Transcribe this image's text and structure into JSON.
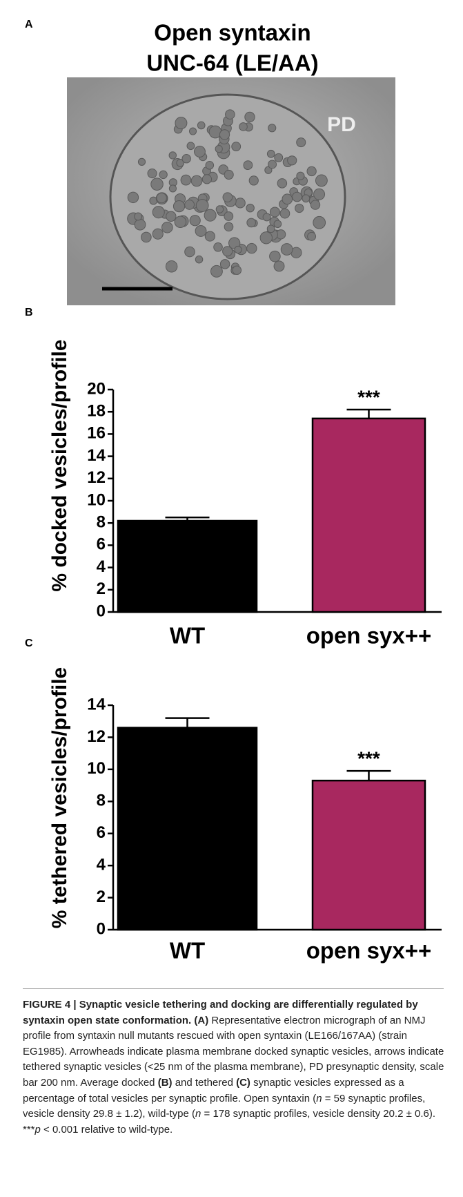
{
  "panels": {
    "a": "A",
    "b": "B",
    "c": "C"
  },
  "micrograph": {
    "title": [
      "Open syntaxin",
      "UNC-64 (LE/AA)"
    ],
    "label": "PD"
  },
  "chart_data": [
    {
      "type": "bar",
      "ylabel": "% docked vesicles/profile",
      "categories": [
        "WT",
        "open syx++"
      ],
      "values": [
        8.2,
        17.4
      ],
      "errors": [
        0.3,
        0.8
      ],
      "colors": [
        "#000000",
        "#a8285f"
      ],
      "annotations": [
        null,
        "***"
      ],
      "ylim": [
        0,
        20
      ],
      "yticks": [
        0,
        2,
        4,
        6,
        8,
        10,
        12,
        14,
        16,
        18,
        20
      ]
    },
    {
      "type": "bar",
      "ylabel": "% tethered vesicles/profile",
      "categories": [
        "WT",
        "open syx++"
      ],
      "values": [
        12.6,
        9.3
      ],
      "errors": [
        0.6,
        0.6
      ],
      "colors": [
        "#000000",
        "#a8285f"
      ],
      "annotations": [
        null,
        "***"
      ],
      "ylim": [
        0,
        14
      ],
      "yticks": [
        0,
        2,
        4,
        6,
        8,
        10,
        12,
        14
      ]
    }
  ],
  "caption": [
    {
      "text": "FIGURE 4 | Synaptic vesicle tethering and docking are differentially regulated by syntaxin open state conformation. (A)",
      "style": "bold"
    },
    {
      "text": " Representative electron micrograph of an NMJ profile from syntaxin null mutants rescued with open syntaxin (LE166/167AA) (strain EG1985). Arrowheads indicate plasma membrane docked synaptic vesicles, arrows indicate tethered synaptic vesicles (<25 nm of the plasma membrane), PD presynaptic density, scale bar 200 nm. Average docked ",
      "style": "normal"
    },
    {
      "text": "(B)",
      "style": "bold"
    },
    {
      "text": " and tethered ",
      "style": "normal"
    },
    {
      "text": "(C)",
      "style": "bold"
    },
    {
      "text": " synaptic vesicles expressed as a percentage of total vesicles per synaptic profile. Open syntaxin (",
      "style": "normal"
    },
    {
      "text": "n",
      "style": "italic"
    },
    {
      "text": " = 59 synaptic profiles, vesicle density 29.8 ± 1.2), wild-type (",
      "style": "normal"
    },
    {
      "text": "n",
      "style": "italic"
    },
    {
      "text": " = 178 synaptic profiles, vesicle density 20.2 ± 0.6). ***",
      "style": "normal"
    },
    {
      "text": "p",
      "style": "italic"
    },
    {
      "text": " < 0.001 relative to wild-type.",
      "style": "normal"
    }
  ]
}
